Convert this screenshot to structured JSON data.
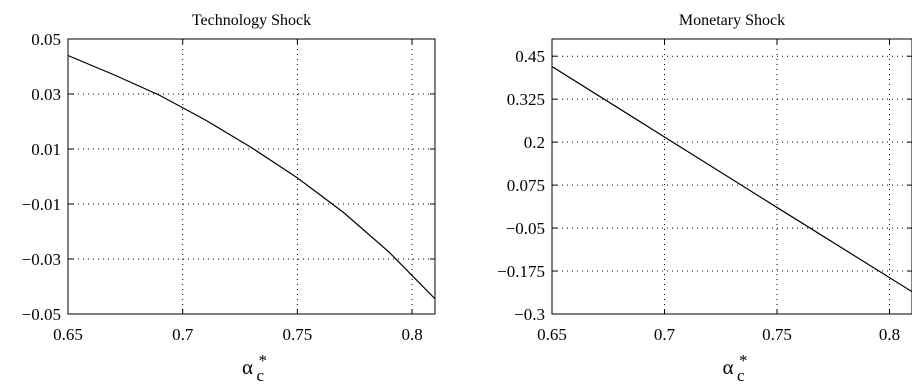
{
  "chart_data": [
    {
      "type": "line",
      "title": "Technology Shock",
      "xlabel": "α",
      "xlabel_sub": "c",
      "xlabel_sup": "*",
      "ylabel": "",
      "xlim": [
        0.65,
        0.81
      ],
      "ylim": [
        -0.05,
        0.05
      ],
      "xticks": [
        0.65,
        0.7,
        0.75,
        0.8
      ],
      "xtick_labels": [
        "0.65",
        "0.7",
        "0.75",
        "0.8"
      ],
      "yticks": [
        -0.05,
        -0.03,
        -0.01,
        0.01,
        0.03,
        0.05
      ],
      "ytick_labels": [
        "−0.05",
        "−0.03",
        "−0.01",
        "0.01",
        "0.03",
        "0.05"
      ],
      "grid": true,
      "series": [
        {
          "x": [
            0.65,
            0.67,
            0.69,
            0.71,
            0.73,
            0.75,
            0.77,
            0.79,
            0.81
          ],
          "y": [
            0.044,
            0.037,
            0.0295,
            0.0205,
            0.0105,
            -0.0005,
            -0.013,
            -0.0275,
            -0.0445
          ]
        }
      ]
    },
    {
      "type": "line",
      "title": "Monetary Shock",
      "xlabel": "α",
      "xlabel_sub": "c",
      "xlabel_sup": "*",
      "ylabel": "",
      "xlim": [
        0.65,
        0.81
      ],
      "ylim": [
        -0.3,
        0.5
      ],
      "xticks": [
        0.65,
        0.7,
        0.75,
        0.8
      ],
      "xtick_labels": [
        "0.65",
        "0.7",
        "0.75",
        "0.8"
      ],
      "yticks": [
        -0.3,
        -0.175,
        -0.05,
        0.075,
        0.2,
        0.325,
        0.45
      ],
      "ytick_labels": [
        "−0.3",
        "−0.175",
        "−0.05",
        "0.075",
        "0.2",
        "0.325",
        "0.45"
      ],
      "grid": true,
      "series": [
        {
          "x": [
            0.65,
            0.7,
            0.75,
            0.81
          ],
          "y": [
            0.42,
            0.215,
            0.01,
            -0.235
          ]
        }
      ]
    }
  ]
}
